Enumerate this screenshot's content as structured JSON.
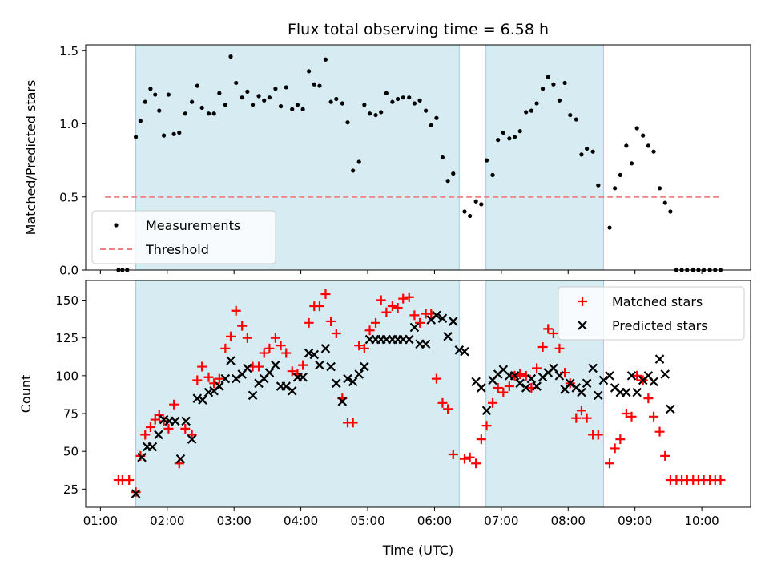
{
  "chart_data": [
    {
      "type": "scatter",
      "title": "Flux total observing time = 6.58 h",
      "ylabel": "Matched/Predicted stars",
      "xlabel": "",
      "xlim": [
        0.78,
        10.73
      ],
      "ylim": [
        0.0,
        1.54
      ],
      "yticks": [
        0.0,
        0.5,
        1.0,
        1.5
      ],
      "ytick_labels": [
        "0.0",
        "0.5",
        "1.0",
        "1.5"
      ],
      "legend_position": "lower-left",
      "shaded_intervals": [
        [
          1.53,
          6.37
        ],
        [
          6.77,
          8.53
        ]
      ],
      "threshold": {
        "name": "Threshold",
        "value": 0.5,
        "x_range": [
          1.07,
          10.3
        ],
        "color": "#f08080"
      },
      "series": [
        {
          "name": "Measurements",
          "color": "#000000",
          "x": [
            1.27,
            1.33,
            1.4,
            1.53,
            1.6,
            1.67,
            1.75,
            1.82,
            1.88,
            1.95,
            2.02,
            2.1,
            2.18,
            2.27,
            2.37,
            2.45,
            2.52,
            2.62,
            2.7,
            2.78,
            2.87,
            2.95,
            3.03,
            3.12,
            3.2,
            3.28,
            3.37,
            3.45,
            3.53,
            3.62,
            3.7,
            3.78,
            3.87,
            3.95,
            4.03,
            4.12,
            4.2,
            4.28,
            4.37,
            4.45,
            4.53,
            4.62,
            4.7,
            4.78,
            4.87,
            4.95,
            5.03,
            5.12,
            5.2,
            5.28,
            5.37,
            5.45,
            5.53,
            5.62,
            5.7,
            5.78,
            5.87,
            5.95,
            6.03,
            6.12,
            6.2,
            6.28,
            6.45,
            6.53,
            6.62,
            6.7,
            6.78,
            6.87,
            6.95,
            7.03,
            7.12,
            7.2,
            7.28,
            7.37,
            7.45,
            7.53,
            7.62,
            7.7,
            7.78,
            7.87,
            7.95,
            8.03,
            8.12,
            8.2,
            8.28,
            8.37,
            8.45,
            8.62,
            8.7,
            8.78,
            8.87,
            8.95,
            9.03,
            9.12,
            9.2,
            9.28,
            9.37,
            9.45,
            9.53,
            9.62,
            9.7,
            9.78,
            9.87,
            9.95,
            10.03,
            10.12,
            10.2,
            10.28
          ],
          "y": [
            0,
            0,
            0,
            0.91,
            1.02,
            1.15,
            1.24,
            1.2,
            1.09,
            0.92,
            1.2,
            0.93,
            0.94,
            1.07,
            1.15,
            1.26,
            1.11,
            1.07,
            1.07,
            1.21,
            1.13,
            1.46,
            1.28,
            1.18,
            1.22,
            1.13,
            1.19,
            1.16,
            1.18,
            1.24,
            1.12,
            1.25,
            1.1,
            1.13,
            1.1,
            1.36,
            1.27,
            1.26,
            1.44,
            1.15,
            1.17,
            1.14,
            1.01,
            0.68,
            0.74,
            1.13,
            1.07,
            1.06,
            1.08,
            1.21,
            1.15,
            1.17,
            1.18,
            1.18,
            1.14,
            1.16,
            1.09,
            0.99,
            1.04,
            0.77,
            0.61,
            0.66,
            0.4,
            0.37,
            0.47,
            0.45,
            0.75,
            0.65,
            0.89,
            0.94,
            0.9,
            0.91,
            0.95,
            1.08,
            1.09,
            1.14,
            1.24,
            1.32,
            1.27,
            1.16,
            1.28,
            1.06,
            1.03,
            0.79,
            0.83,
            0.81,
            0.58,
            0.29,
            0.56,
            0.65,
            0.85,
            0.73,
            0.97,
            0.92,
            0.85,
            0.81,
            0.56,
            0.46,
            0.4,
            0,
            0,
            0,
            0,
            0,
            0,
            0,
            0,
            0
          ]
        }
      ]
    },
    {
      "type": "scatter",
      "title": "",
      "ylabel": "Count",
      "xlabel": "Time (UTC)",
      "xlim": [
        0.78,
        10.73
      ],
      "ylim": [
        13,
        163
      ],
      "xticks": [
        1,
        2,
        3,
        4,
        5,
        6,
        7,
        8,
        9,
        10
      ],
      "xtick_labels": [
        "01:00",
        "02:00",
        "03:00",
        "04:00",
        "05:00",
        "06:00",
        "07:00",
        "08:00",
        "09:00",
        "10:00"
      ],
      "yticks": [
        25,
        50,
        75,
        100,
        125,
        150
      ],
      "ytick_labels": [
        "25",
        "50",
        "75",
        "100",
        "125",
        "150"
      ],
      "legend_position": "top-right",
      "shaded_intervals": [
        [
          1.53,
          6.37
        ],
        [
          6.77,
          8.53
        ]
      ],
      "series": [
        {
          "name": "Matched stars",
          "marker": "plus",
          "color": "#ff0000",
          "x": [
            1.27,
            1.33,
            1.43,
            1.53,
            1.6,
            1.67,
            1.75,
            1.82,
            1.88,
            1.95,
            2.02,
            2.1,
            2.18,
            2.27,
            2.37,
            2.45,
            2.52,
            2.62,
            2.7,
            2.78,
            2.87,
            2.95,
            3.03,
            3.12,
            3.2,
            3.28,
            3.37,
            3.45,
            3.53,
            3.62,
            3.7,
            3.78,
            3.87,
            3.95,
            4.03,
            4.12,
            4.2,
            4.28,
            4.37,
            4.45,
            4.53,
            4.62,
            4.7,
            4.78,
            4.87,
            4.95,
            5.03,
            5.12,
            5.2,
            5.28,
            5.37,
            5.45,
            5.53,
            5.62,
            5.7,
            5.78,
            5.87,
            5.95,
            6.03,
            6.12,
            6.2,
            6.28,
            6.45,
            6.53,
            6.62,
            6.7,
            6.78,
            6.87,
            6.95,
            7.03,
            7.12,
            7.2,
            7.28,
            7.37,
            7.45,
            7.53,
            7.62,
            7.7,
            7.78,
            7.87,
            7.95,
            8.03,
            8.12,
            8.2,
            8.28,
            8.37,
            8.45,
            8.62,
            8.7,
            8.78,
            8.87,
            8.95,
            9.03,
            9.12,
            9.2,
            9.28,
            9.37,
            9.45,
            9.53,
            9.62,
            9.7,
            9.78,
            9.87,
            9.95,
            10.03,
            10.12,
            10.2,
            10.28
          ],
          "y": [
            31,
            31,
            31,
            23,
            47,
            61,
            66,
            71,
            74,
            70,
            65,
            81,
            42,
            65,
            61,
            97,
            106,
            99,
            95,
            98,
            118,
            126,
            143,
            133,
            125,
            106,
            106,
            115,
            118,
            125,
            120,
            115,
            103,
            101,
            107,
            135,
            146,
            146,
            154,
            136,
            128,
            85,
            69,
            69,
            120,
            118,
            130,
            135,
            150,
            142,
            146,
            145,
            151,
            152,
            140,
            135,
            141,
            141,
            98,
            82,
            78,
            48,
            45,
            46,
            42,
            58,
            67,
            82,
            92,
            89,
            93,
            100,
            101,
            100,
            92,
            105,
            119,
            131,
            128,
            118,
            102,
            95,
            72,
            77,
            72,
            61,
            61,
            42,
            52,
            58,
            75,
            73,
            100,
            97,
            85,
            73,
            63,
            47,
            31,
            31,
            31,
            31,
            31,
            31,
            31,
            31,
            31,
            31
          ]
        },
        {
          "name": "Predicted stars",
          "marker": "x",
          "color": "#000000",
          "x": [
            1.53,
            1.62,
            1.7,
            1.78,
            1.87,
            1.95,
            2.03,
            2.12,
            2.2,
            2.28,
            2.37,
            2.45,
            2.53,
            2.62,
            2.7,
            2.78,
            2.87,
            2.95,
            3.03,
            3.12,
            3.2,
            3.28,
            3.37,
            3.45,
            3.53,
            3.62,
            3.7,
            3.78,
            3.87,
            3.95,
            4.03,
            4.12,
            4.2,
            4.28,
            4.37,
            4.45,
            4.53,
            4.62,
            4.7,
            4.78,
            4.87,
            4.95,
            5.03,
            5.12,
            5.2,
            5.28,
            5.37,
            5.45,
            5.53,
            5.62,
            5.7,
            5.78,
            5.87,
            5.95,
            6.03,
            6.12,
            6.2,
            6.28,
            6.37,
            6.45,
            6.62,
            6.7,
            6.78,
            6.87,
            6.95,
            7.03,
            7.12,
            7.2,
            7.28,
            7.37,
            7.45,
            7.53,
            7.62,
            7.7,
            7.78,
            7.87,
            7.95,
            8.03,
            8.12,
            8.2,
            8.28,
            8.37,
            8.45,
            8.53,
            8.62,
            8.7,
            8.78,
            8.87,
            8.95,
            9.03,
            9.12,
            9.2,
            9.28,
            9.37,
            9.45,
            9.53
          ],
          "y": [
            22,
            46,
            53,
            53,
            61,
            71,
            70,
            70,
            45,
            70,
            58,
            85,
            84,
            89,
            90,
            93,
            98,
            110,
            98,
            101,
            105,
            87,
            95,
            98,
            102,
            107,
            93,
            93,
            90,
            99,
            99,
            115,
            114,
            107,
            118,
            106,
            95,
            83,
            98,
            96,
            101,
            106,
            124,
            124,
            124,
            124,
            124,
            124,
            124,
            124,
            132,
            121,
            121,
            137,
            140,
            138,
            126,
            136,
            117,
            116,
            96,
            92,
            77,
            97,
            101,
            104,
            100,
            100,
            95,
            92,
            98,
            93,
            99,
            102,
            105,
            100,
            91,
            95,
            92,
            89,
            95,
            105,
            87,
            97,
            100,
            92,
            89,
            89,
            100,
            89,
            97,
            100,
            96,
            111,
            101,
            78
          ]
        }
      ]
    }
  ]
}
